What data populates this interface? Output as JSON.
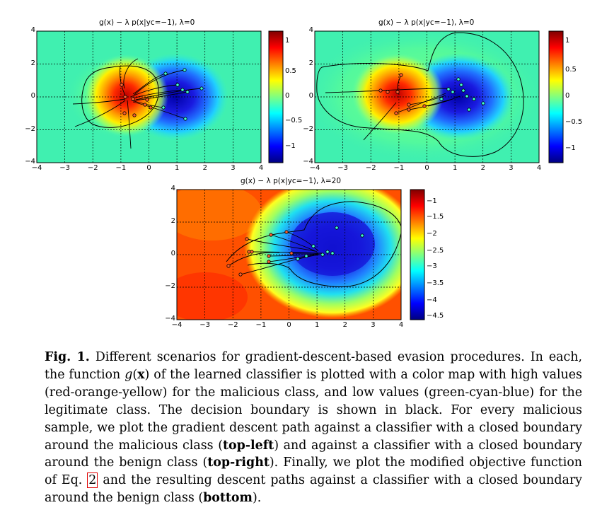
{
  "figure": {
    "panels": [
      {
        "id": "top-left",
        "title": "g(x) − λ p(x|yc=−1), λ=0",
        "x_ticks": [
          "−4",
          "−3",
          "−2",
          "−1",
          "0",
          "1",
          "2",
          "3",
          "4"
        ],
        "y_ticks": [
          "4",
          "2",
          "0",
          "−2",
          "−4"
        ],
        "colorbar_ticks": [
          "1",
          "0.5",
          "0",
          "−0.5",
          "−1"
        ]
      },
      {
        "id": "top-right",
        "title": "g(x) − λ p(x|yc=−1), λ=0",
        "x_ticks": [
          "−4",
          "−3",
          "−2",
          "−1",
          "0",
          "1",
          "2",
          "3",
          "4"
        ],
        "y_ticks": [
          "4",
          "2",
          "0",
          "−2",
          "−4"
        ],
        "colorbar_ticks": [
          "1",
          "0.5",
          "0",
          "−0.5",
          "−1"
        ]
      },
      {
        "id": "bottom",
        "title": "g(x) − λ p(x|yc=−1), λ=20",
        "x_ticks": [
          "−4",
          "−3",
          "−2",
          "−1",
          "0",
          "1",
          "2",
          "3",
          "4"
        ],
        "y_ticks": [
          "4",
          "2",
          "0",
          "−2",
          "−4"
        ],
        "colorbar_ticks": [
          "−1",
          "−1.5",
          "−2",
          "−2.5",
          "−3",
          "−3.5",
          "−4",
          "−4.5"
        ]
      }
    ],
    "colors": {
      "high": "#c80000",
      "mid": "#3ff0b0",
      "low": "#1010d8",
      "boundary": "#000000",
      "ref_box": "#e00000"
    }
  },
  "caption": {
    "label": "Fig. 1.",
    "text_1": " Different scenarios for gradient-descent-based evasion procedures. In each, the function ",
    "g_symbol": "g",
    "paren_open": "(",
    "x_symbol": "x",
    "text_2": ") of the learned classifier is plotted with a color map with high values (red-orange-yellow) for the malicious class, and low values (green-cyan-blue) for the legitimate class. The decision boundary is shown in black. For every malicious sample, we plot the gradient descent path against a classifier with a closed boundary around the malicious class (",
    "top_left": "top-left",
    "text_3": ") and against a classifier with a closed boundary around the benign class (",
    "top_right": "top-right",
    "text_4": "). Finally, we plot the modified objective function of Eq. ",
    "eq_ref": "2",
    "text_5": " and the resulting descent paths against a classifier with a closed boundary around the benign class (",
    "bottom": "bottom",
    "text_6": ")."
  }
}
